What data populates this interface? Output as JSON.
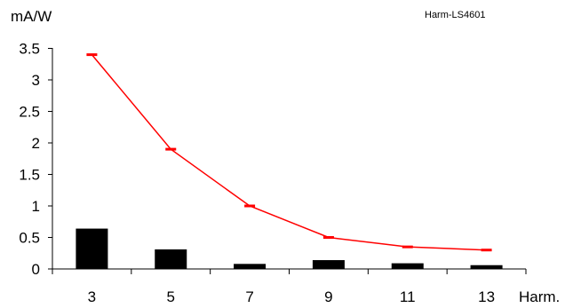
{
  "chart_data": {
    "type": "bar",
    "ylabel": "mA/W",
    "xlabel": "Harm.",
    "annotation": "Harm-LS4601",
    "categories": [
      "3",
      "5",
      "7",
      "9",
      "11",
      "13"
    ],
    "y_ticks": [
      "0",
      "0.5",
      "1",
      "1.5",
      "2",
      "2.5",
      "3",
      "3.5"
    ],
    "ylim": [
      0,
      3.85
    ],
    "grid": false,
    "series": [
      {
        "kind": "bar",
        "color": "#000000",
        "values": [
          0.64,
          0.31,
          0.08,
          0.14,
          0.09,
          0.06
        ]
      },
      {
        "kind": "line",
        "color": "#ff0000",
        "marker": "dash",
        "values": [
          3.4,
          1.9,
          1.0,
          0.5,
          0.35,
          0.3
        ]
      }
    ]
  }
}
